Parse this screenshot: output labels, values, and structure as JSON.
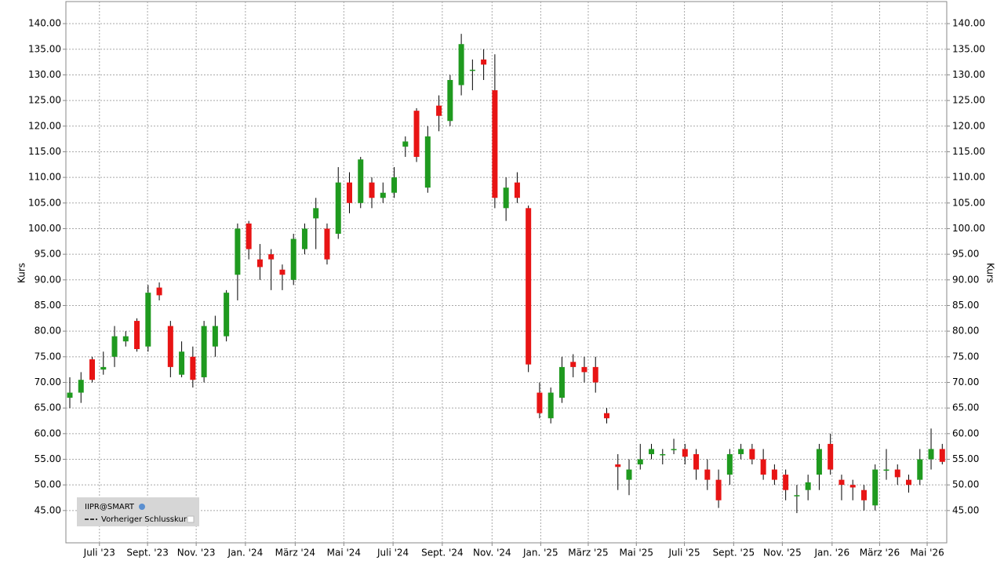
{
  "chart_data": {
    "type": "candlestick",
    "series": [
      {
        "name": "IIPR@SMART",
        "up_color": "#1f9a1f",
        "down_color": "#e81414",
        "x": [
          0,
          2,
          4,
          6,
          8,
          10,
          12,
          14,
          16,
          18,
          20,
          22,
          24,
          26,
          28,
          30,
          32,
          34,
          36,
          38,
          40,
          42,
          44,
          46,
          48,
          50,
          52,
          54,
          56,
          58,
          60,
          62,
          64,
          66,
          68,
          70,
          72,
          74,
          76,
          78,
          80,
          82,
          84,
          86,
          88,
          90,
          92,
          94,
          96,
          98,
          100,
          102,
          104,
          106,
          108,
          110,
          112,
          114,
          116,
          118,
          120,
          122,
          124,
          126,
          128,
          130,
          132,
          134,
          136,
          138,
          140,
          142,
          144,
          146,
          148,
          150,
          152,
          154,
          156
        ],
        "open": [
          67,
          68,
          74.5,
          72.5,
          75,
          78,
          82,
          77,
          88.5,
          81,
          71.5,
          75,
          71,
          77,
          79,
          91,
          101,
          94,
          95,
          92,
          90,
          96,
          102,
          100,
          99,
          109,
          105,
          109,
          106,
          107,
          116,
          123,
          108,
          124,
          121,
          128,
          131,
          133,
          127,
          104,
          109,
          104,
          68,
          63,
          67,
          74,
          73,
          73,
          64,
          54,
          51,
          54,
          56,
          56,
          57,
          57,
          56,
          53,
          51,
          52,
          56,
          57,
          55,
          53,
          52,
          48,
          49,
          52,
          58,
          51,
          50,
          49,
          46,
          53,
          53,
          51,
          51,
          55,
          57
        ],
        "high": [
          71,
          72,
          75,
          76,
          81,
          80,
          82.5,
          89,
          89.5,
          82,
          78,
          77,
          82,
          83,
          88,
          101,
          101.5,
          97,
          96,
          93,
          99,
          101,
          106,
          101,
          112,
          111,
          114,
          110,
          109,
          112,
          118,
          123.5,
          120,
          126,
          130,
          138,
          133,
          135,
          134,
          110,
          111,
          104.5,
          70,
          69,
          75,
          75.5,
          75,
          75,
          65,
          56,
          55,
          58,
          58,
          57,
          59,
          58,
          57,
          55,
          53,
          57,
          58,
          58,
          57,
          54,
          53,
          50,
          52,
          58,
          60,
          52,
          51,
          50,
          54,
          57,
          54,
          52,
          57,
          61,
          58
        ],
        "low": [
          65,
          66,
          70,
          71.5,
          73,
          77,
          76,
          76,
          86,
          71,
          71,
          69,
          70,
          75,
          78,
          86,
          94,
          90,
          88,
          88,
          89,
          95,
          96,
          93,
          98,
          103,
          104,
          104,
          105,
          106,
          114,
          113,
          107,
          119,
          120,
          126,
          127,
          129,
          104,
          101.5,
          105,
          72,
          63,
          62,
          66,
          71,
          70,
          68,
          62,
          49,
          48,
          53,
          55,
          54,
          56,
          54,
          51,
          49,
          45.5,
          50,
          55,
          54,
          51,
          50,
          47,
          44.5,
          47,
          49,
          52,
          47,
          47,
          45,
          45,
          51,
          50,
          48.5,
          50,
          53,
          54
        ],
        "close": [
          68,
          70.5,
          70.5,
          73,
          79,
          79,
          76.5,
          87.5,
          87,
          73,
          76,
          70.5,
          81,
          81,
          87.5,
          100,
          96,
          92.5,
          94,
          91,
          98,
          100,
          104,
          94,
          109,
          105,
          113.5,
          106,
          107,
          110,
          117,
          114,
          118,
          122,
          129,
          136,
          131,
          132,
          106,
          108,
          106,
          73.5,
          64,
          68,
          73,
          73,
          72,
          70,
          63,
          53.5,
          53,
          55,
          57,
          56,
          57,
          55.5,
          53,
          51,
          47,
          56,
          57,
          55,
          52,
          51,
          49,
          48,
          50.5,
          57,
          53,
          50,
          49.5,
          47,
          53,
          53,
          51.5,
          50,
          55,
          57,
          54.5
        ]
      }
    ],
    "legend_note": "Vorheriger Schlusskurs",
    "y_label": "Kurs",
    "ylim": [
      38.7,
      144.3
    ],
    "yticks": [
      {
        "value": 45,
        "label": "45.00"
      },
      {
        "value": 50,
        "label": "50.00"
      },
      {
        "value": 55,
        "label": "55.00"
      },
      {
        "value": 60,
        "label": "60.00"
      },
      {
        "value": 65,
        "label": "65.00"
      },
      {
        "value": 70,
        "label": "70.00"
      },
      {
        "value": 75,
        "label": "75.00"
      },
      {
        "value": 80,
        "label": "80.00"
      },
      {
        "value": 85,
        "label": "85.00"
      },
      {
        "value": 90,
        "label": "90.00"
      },
      {
        "value": 95,
        "label": "95.00"
      },
      {
        "value": 100,
        "label": "100.00"
      },
      {
        "value": 105,
        "label": "105.00"
      },
      {
        "value": 110,
        "label": "110.00"
      },
      {
        "value": 115,
        "label": "115.00"
      },
      {
        "value": 120,
        "label": "120.00"
      },
      {
        "value": 125,
        "label": "125.00"
      },
      {
        "value": 130,
        "label": "130.00"
      },
      {
        "value": 135,
        "label": "135.00"
      },
      {
        "value": 140,
        "label": "140.00"
      }
    ],
    "xlim": [
      -0.7,
      156.8
    ],
    "xticks": [
      {
        "value": 5.3,
        "label": "Juli '23"
      },
      {
        "value": 13.9,
        "label": "Sept. '23"
      },
      {
        "value": 22.6,
        "label": "Nov. '23"
      },
      {
        "value": 31.4,
        "label": "Jan. '24"
      },
      {
        "value": 40.3,
        "label": "März '24"
      },
      {
        "value": 49,
        "label": "Mai '24"
      },
      {
        "value": 57.8,
        "label": "Juli '24"
      },
      {
        "value": 66.6,
        "label": "Sept. '24"
      },
      {
        "value": 75.5,
        "label": "Nov. '24"
      },
      {
        "value": 84.2,
        "label": "Jan. '25"
      },
      {
        "value": 92.7,
        "label": "März '25"
      },
      {
        "value": 101.3,
        "label": "Mai '25"
      },
      {
        "value": 109.9,
        "label": "Juli '25"
      },
      {
        "value": 118.7,
        "label": "Sept. '25"
      },
      {
        "value": 127.4,
        "label": "Nov. '25"
      },
      {
        "value": 136.3,
        "label": "Jan. '26"
      },
      {
        "value": 144.8,
        "label": "März '26"
      },
      {
        "value": 153.3,
        "label": "Mai '26"
      }
    ],
    "grid": true
  }
}
